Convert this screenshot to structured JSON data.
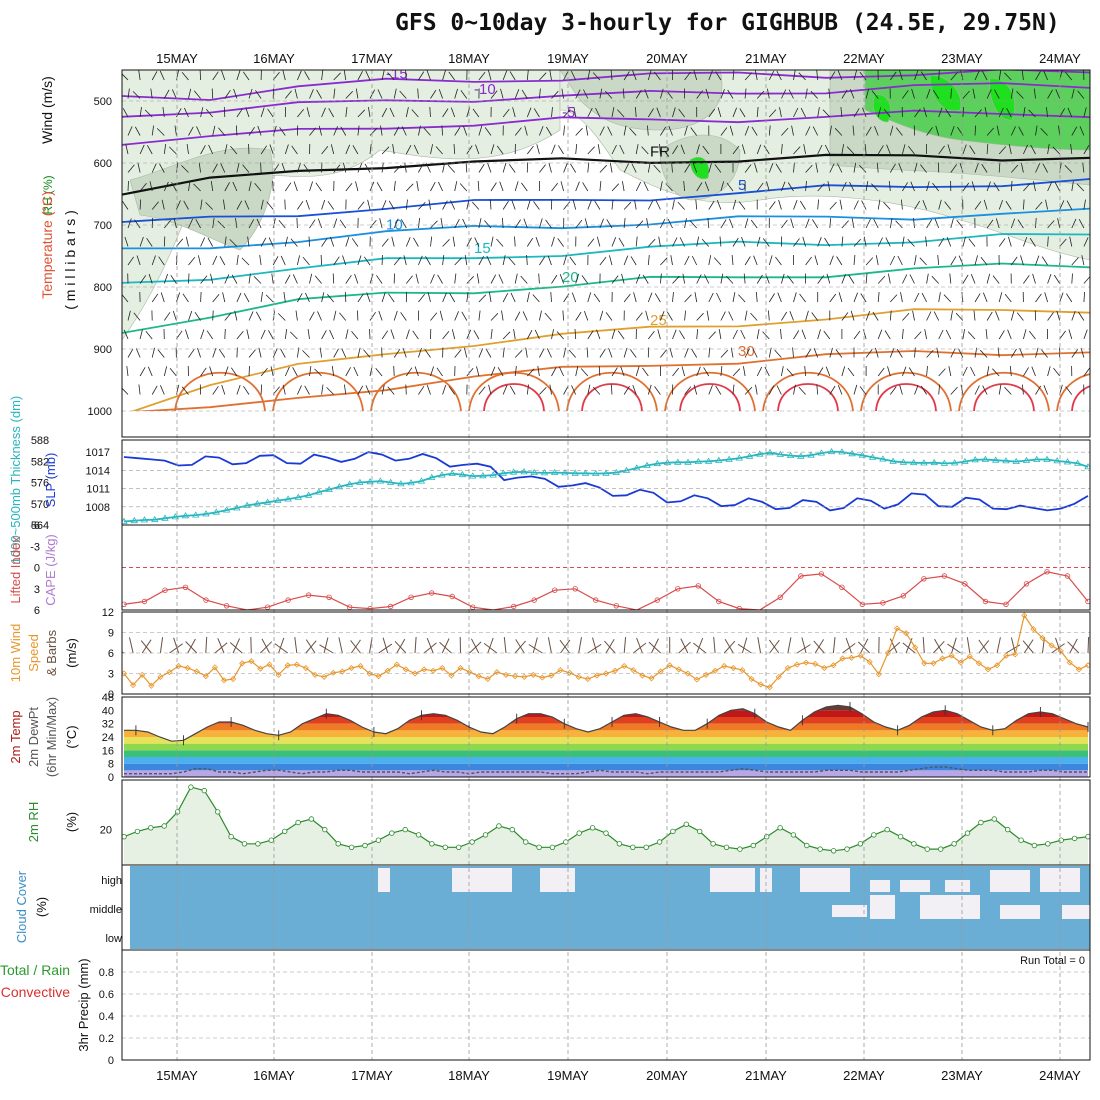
{
  "title": "GFS 0~10day 3-hourly for GIGHBUB (24.5E, 29.75N)",
  "colors": {
    "grid": "#9a9a9a",
    "rh_fill": "#e4efe2",
    "rh_dark": "#c9d9c6",
    "rh_green": "#5ccf5c",
    "rh_bright": "#1fe01f",
    "slp": "#1a3ad6",
    "thickness": "#29b6bf",
    "lifted": "#d94b4b",
    "wind_speed": "#e8962a",
    "barb": "#6b5040",
    "temp_line": "#444444",
    "rh2m": "#2b8a2b",
    "cloud": "#6aaed6",
    "cloud_clear": "#f3f0f5",
    "run_total": "#111111"
  },
  "chart_data": [
    {
      "panel": "upper-air",
      "type": "contour",
      "dates": [
        "15MAY",
        "16MAY",
        "17MAY",
        "18MAY",
        "19MAY",
        "20MAY",
        "21MAY",
        "22MAY",
        "23MAY",
        "24MAY"
      ],
      "ylabel_parts": [
        "RH (%)",
        "Temperature",
        "(°C)",
        "Wind (m/s)",
        "( m i l l i b a r s )"
      ],
      "yticks": [
        500,
        600,
        700,
        800,
        900,
        1000
      ],
      "ylim": [
        450,
        1000
      ],
      "isotherms": [
        {
          "label": "-15",
          "color": "#8a2bd0",
          "p": [
            492,
            492,
            478,
            470,
            466,
            462,
            460,
            458,
            457,
            456,
            455,
            455
          ]
        },
        {
          "label": "-10",
          "color": "#8a2bd0",
          "p": [
            520,
            516,
            508,
            500,
            495,
            492,
            490,
            486,
            482,
            478,
            476,
            474
          ]
        },
        {
          "label": "-5",
          "color": "#8a2bd0",
          "p": [
            565,
            560,
            550,
            540,
            536,
            532,
            532,
            528,
            525,
            522,
            520,
            520
          ]
        },
        {
          "label": "FR",
          "color": "#111111",
          "p": [
            650,
            630,
            612,
            602,
            600,
            598,
            596,
            593,
            592,
            591,
            590,
            590
          ]
        },
        {
          "label": "5",
          "color": "#1a4fd6",
          "p": [
            700,
            690,
            680,
            672,
            666,
            660,
            654,
            650,
            642,
            636,
            632,
            630
          ]
        },
        {
          "label": "10",
          "color": "#1a90e0",
          "p": [
            744,
            735,
            722,
            714,
            706,
            700,
            696,
            692,
            688,
            685,
            682,
            680
          ]
        },
        {
          "label": "15",
          "color": "#1cb8c0",
          "p": [
            795,
            782,
            770,
            760,
            752,
            744,
            738,
            732,
            728,
            724,
            720,
            718
          ]
        },
        {
          "label": "20",
          "color": "#1ab88a",
          "p": [
            870,
            845,
            825,
            812,
            804,
            798,
            790,
            784,
            778,
            772,
            768,
            765
          ]
        },
        {
          "label": "25",
          "color": "#e0a030",
          "p": [
            1000,
            960,
            930,
            905,
            890,
            880,
            868,
            858,
            850,
            842,
            838,
            835
          ]
        },
        {
          "label": "30",
          "color": "#e07030",
          "p": [
            1000,
            1000,
            980,
            960,
            945,
            935,
            925,
            918,
            912,
            908,
            905,
            902
          ]
        }
      ],
      "labels_rh": [
        "30",
        "50",
        "30"
      ]
    },
    {
      "panel": "slp-thickness",
      "type": "line",
      "ylabel_left": "1000~500mb Thickness (dm)",
      "ylabel_right": "SLP (mb)",
      "yticks_left": [
        564,
        570,
        576,
        582,
        588
      ],
      "yticks_right": [
        1008,
        1011,
        1014,
        1017
      ],
      "ylim_left": [
        564,
        588
      ],
      "ylim_right": [
        1005,
        1019
      ],
      "series": [
        {
          "values": [
            1016.2,
            1016.0,
            1015.8,
            1015.6,
            1014.8,
            1014.9,
            1016.3,
            1016.1,
            1015.0,
            1015.2,
            1016.4,
            1016.5,
            1015.2,
            1015.1,
            1016.6,
            1016.1,
            1015.4,
            1015.9,
            1017.0,
            1016.6,
            1015.6,
            1015.9,
            1016.7,
            1016.0,
            1014.6,
            1014.9,
            1015.1,
            1014.6,
            1012.4,
            1012.8,
            1013.0,
            1012.6,
            1011.3,
            1011.5,
            1011.9,
            1011.2,
            1009.8,
            1009.9,
            1010.8,
            1010.3,
            1008.7,
            1008.9,
            1009.9,
            1009.4,
            1008.1,
            1008.3,
            1009.4,
            1008.8,
            1007.6,
            1007.8,
            1009.1,
            1008.8,
            1007.4,
            1007.8,
            1009.4,
            1009.0,
            1007.7,
            1008.4,
            1010.2,
            1010.0,
            1008.1,
            1008.0,
            1009.5,
            1009.2,
            1007.7,
            1007.6,
            1008.2,
            1007.8,
            1007.4,
            1007.7,
            1008.5,
            1009.8
          ]
        },
        {
          "values": [
            565.0,
            565.2,
            565.4,
            565.5,
            565.9,
            566.3,
            566.6,
            566.8,
            567.1,
            567.6,
            568.2,
            568.8,
            569.5,
            570.0,
            570.4,
            570.9,
            571.3,
            571.8,
            572.4,
            573.3,
            574.0,
            574.8,
            575.5,
            576.0,
            576.2,
            576.4,
            576.0,
            575.6,
            575.9,
            576.4,
            577.4,
            578.1,
            578.5,
            578.2,
            577.8,
            577.9,
            578.1,
            578.6,
            578.9,
            579.0,
            578.8,
            578.7,
            578.8,
            578.7,
            578.6,
            578.6,
            578.5,
            578.6,
            578.8,
            579.4,
            580.1,
            580.8,
            581.3,
            581.6,
            581.7,
            581.7,
            581.9,
            582.0,
            582.2,
            582.5,
            582.9,
            583.4,
            584.0,
            584.4,
            583.9,
            583.6,
            583.4,
            583.7,
            584.3,
            584.7,
            584.6,
            584.1,
            583.7,
            583.1,
            582.6,
            582.0,
            581.7,
            581.6,
            581.5,
            581.6,
            581.4,
            581.5,
            581.9,
            582.4,
            582.5,
            582.3,
            582.1,
            581.9,
            582.2,
            582.5,
            582.5,
            582.1,
            581.8,
            581.4,
            580.4
          ]
        }
      ]
    },
    {
      "panel": "instability",
      "type": "line",
      "ylabel_left": "CAPE (J/kg)",
      "ylabel_right": "Lifted Index",
      "yticks": [
        -6,
        -3,
        0,
        3,
        6
      ],
      "ylim": [
        -6,
        6
      ],
      "series": [
        {
          "values": [
            5.2,
            4.8,
            3.2,
            2.8,
            4.6,
            5.4,
            6.0,
            5.6,
            4.6,
            3.9,
            4.2,
            5.6,
            5.8,
            5.5,
            4.2,
            3.6,
            4.1,
            5.6,
            6.0,
            5.5,
            4.6,
            3.2,
            3.0,
            4.6,
            5.4,
            6.0,
            4.6,
            3.0,
            2.6,
            4.8,
            5.8,
            6.0,
            4.2,
            1.2,
            0.9,
            2.8,
            5.2,
            5.0,
            4.0,
            1.6,
            1.2,
            2.3,
            4.8,
            5.2,
            2.3,
            0.6,
            1.2,
            4.8
          ]
        }
      ]
    },
    {
      "panel": "surface-wind",
      "type": "line",
      "ylabel_parts": [
        "10m Wind",
        "Speed",
        "& Barbs",
        "(m/s)"
      ],
      "yticks": [
        0,
        3,
        6,
        9,
        12
      ],
      "ylim": [
        0,
        12
      ],
      "series": [
        {
          "values": [
            3.0,
            1.3,
            2.8,
            1.2,
            2.5,
            3.2,
            4.1,
            3.8,
            3.3,
            2.6,
            3.9,
            2.0,
            2.2,
            4.5,
            4.8,
            3.7,
            4.3,
            2.8,
            4.2,
            4.3,
            3.8,
            2.8,
            2.5,
            3.1,
            3.3,
            3.8,
            4.1,
            3.0,
            2.6,
            3.4,
            4.3,
            3.6,
            3.0,
            3.6,
            3.4,
            3.8,
            2.7,
            3.8,
            3.2,
            2.6,
            2.2,
            3.2,
            2.8,
            2.6,
            2.5,
            2.8,
            2.4,
            2.7,
            3.5,
            3.1,
            2.5,
            2.2,
            2.7,
            3.0,
            3.4,
            4.1,
            3.5,
            2.7,
            2.3,
            3.3,
            4.2,
            3.6,
            3.0,
            2.1,
            2.8,
            3.4,
            4.1,
            3.8,
            3.5,
            2.2,
            1.4,
            1.0,
            2.5,
            3.8,
            4.3,
            4.6,
            4.4,
            3.8,
            4.2,
            5.2,
            5.3,
            5.6,
            4.7,
            2.9,
            6.0,
            9.6,
            8.9,
            6.8,
            4.5,
            4.5,
            5.2,
            5.6,
            4.6,
            5.5,
            4.5,
            3.6,
            4.2,
            5.6,
            5.8,
            11.5,
            9.5,
            8.2,
            7.1,
            6.3,
            4.6,
            3.6,
            4.2
          ]
        }
      ]
    },
    {
      "panel": "surface-temp",
      "type": "area",
      "ylabel_parts": [
        "2m Temp",
        "2m DewPt",
        "(6hr Min/Max)",
        "(°C)"
      ],
      "yticks": [
        0,
        8,
        16,
        24,
        32,
        40,
        48
      ],
      "ylim": [
        0,
        48
      ],
      "series": [
        {
          "values": [
            28,
            28,
            27,
            24,
            21.5,
            22,
            26,
            30,
            33,
            33,
            31,
            28,
            26,
            25,
            27,
            32,
            35,
            38,
            37,
            34,
            30,
            27,
            26,
            29,
            34,
            37,
            38,
            37,
            34,
            30,
            27,
            26,
            30,
            35,
            38,
            38,
            36,
            32,
            29,
            27,
            29,
            33,
            37,
            38,
            36,
            33,
            30,
            28,
            28,
            32,
            37,
            40,
            41,
            38,
            33,
            30,
            28,
            34,
            39,
            42,
            43,
            42,
            38,
            33,
            30,
            28,
            31,
            36,
            39,
            40,
            38,
            34,
            30,
            28,
            29,
            34,
            38,
            39,
            38,
            35,
            32,
            30
          ]
        },
        {
          "values": [
            2,
            2,
            2,
            2,
            2,
            3,
            5,
            5,
            3,
            3,
            2,
            3,
            4,
            4,
            3,
            2,
            3,
            3,
            4,
            4,
            3,
            3,
            3,
            3,
            2,
            3,
            4,
            3,
            3,
            2,
            3,
            3,
            3,
            3,
            3,
            3,
            2,
            2,
            2,
            3,
            4,
            3,
            3,
            3,
            2,
            3,
            3,
            3,
            3,
            3,
            3,
            4,
            5,
            4,
            3,
            3,
            3,
            3,
            3,
            4,
            4,
            4,
            3,
            3,
            3,
            3,
            4,
            5,
            6,
            6,
            5,
            4,
            4,
            4,
            3,
            3,
            3,
            4,
            4,
            3,
            3,
            3
          ]
        }
      ]
    },
    {
      "panel": "surface-rh",
      "type": "area",
      "ylabel": "2m RH",
      "yunit": "(%)",
      "yticks": [
        20
      ],
      "ylim": [
        0,
        48
      ],
      "series": [
        {
          "values": [
            16,
            19,
            21,
            22,
            30,
            44,
            42,
            30,
            16,
            12,
            12,
            14,
            19,
            24,
            26,
            20,
            12,
            10,
            11,
            14,
            18,
            20,
            17,
            12,
            10,
            10,
            13,
            17,
            22,
            20,
            13,
            10,
            10,
            13,
            18,
            21,
            18,
            12,
            10,
            10,
            13,
            19,
            23,
            19,
            12,
            10,
            9,
            11,
            16,
            21,
            17,
            11,
            9,
            8,
            9,
            12,
            17,
            20,
            16,
            12,
            9,
            9,
            12,
            18,
            24,
            26,
            20,
            14,
            11,
            12,
            14,
            15,
            16
          ]
        }
      ]
    },
    {
      "panel": "cloud-cover",
      "type": "heatmap",
      "ylabel": "Cloud Cover",
      "yunit": "(%)",
      "rows": [
        "high",
        "middle",
        "low"
      ]
    },
    {
      "panel": "precipitation",
      "type": "bar",
      "ylabel_parts": [
        "Total / Rain",
        "Convective",
        "3hr Precip (mm)"
      ],
      "yticks": [
        "0",
        "0.2",
        "0.4",
        "0.6",
        "0.8"
      ],
      "ylim": [
        0,
        1
      ],
      "run_total": "Run Total = 0"
    }
  ]
}
